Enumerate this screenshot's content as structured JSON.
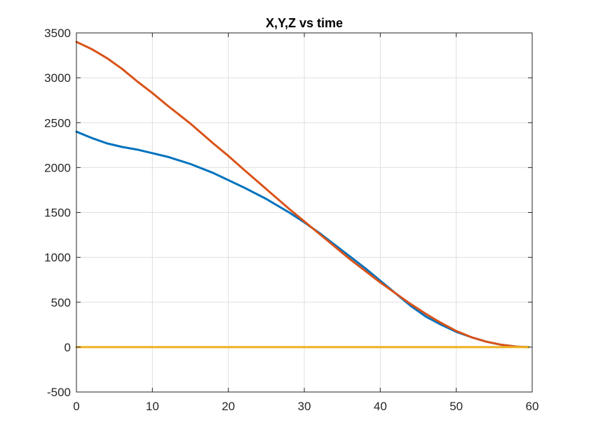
{
  "chart_data": {
    "type": "line",
    "title": "X,Y,Z vs time",
    "xlabel": "",
    "ylabel": "",
    "xlim": [
      0,
      60
    ],
    "ylim": [
      -500,
      3500
    ],
    "xticks": [
      0,
      10,
      20,
      30,
      40,
      50,
      60
    ],
    "yticks": [
      -500,
      0,
      500,
      1000,
      1500,
      2000,
      2500,
      3000,
      3500
    ],
    "grid": true,
    "legend": "none",
    "series": [
      {
        "name": "X",
        "color": "#0072BD",
        "x": [
          0,
          2,
          4,
          6,
          8,
          10,
          12,
          15,
          18,
          20,
          22,
          25,
          28,
          30,
          32,
          34,
          36,
          38,
          40,
          42,
          44,
          46,
          48,
          50,
          52,
          54,
          56,
          58,
          59.5
        ],
        "y": [
          2400,
          2330,
          2270,
          2230,
          2200,
          2160,
          2120,
          2040,
          1940,
          1860,
          1780,
          1650,
          1500,
          1390,
          1270,
          1140,
          1010,
          880,
          740,
          600,
          460,
          340,
          250,
          170,
          110,
          60,
          25,
          5,
          0
        ]
      },
      {
        "name": "Y",
        "color": "#D95319",
        "x": [
          0,
          2,
          4,
          6,
          8,
          10,
          12,
          15,
          18,
          20,
          22,
          25,
          28,
          30,
          32,
          34,
          36,
          38,
          40,
          42,
          44,
          46,
          48,
          50,
          52,
          54,
          56,
          58,
          59.5
        ],
        "y": [
          3400,
          3320,
          3220,
          3100,
          2960,
          2830,
          2690,
          2490,
          2270,
          2130,
          1980,
          1760,
          1540,
          1400,
          1260,
          1120,
          980,
          850,
          720,
          600,
          480,
          370,
          270,
          180,
          110,
          60,
          25,
          5,
          0
        ]
      },
      {
        "name": "Z",
        "color": "#EDB120",
        "x": [
          0,
          10,
          20,
          30,
          40,
          50,
          59.5
        ],
        "y": [
          0,
          0,
          0,
          0,
          0,
          0,
          0
        ]
      }
    ]
  }
}
